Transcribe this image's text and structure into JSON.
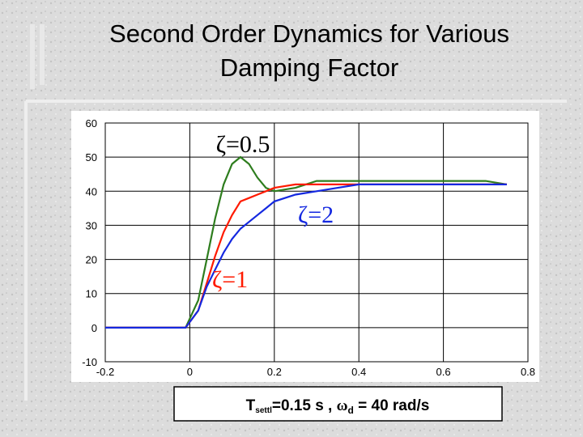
{
  "chart_data": {
    "type": "line",
    "title": [
      "Second  Order Dynamics for Various",
      "Damping Factor"
    ],
    "x": [
      -0.2,
      -0.1,
      -0.01,
      0.02,
      0.04,
      0.06,
      0.08,
      0.1,
      0.12,
      0.14,
      0.16,
      0.18,
      0.2,
      0.25,
      0.3,
      0.35,
      0.4,
      0.5,
      0.6,
      0.7,
      0.75
    ],
    "series": [
      {
        "color": "#2e7d1e",
        "values": [
          0,
          0,
          0,
          8,
          20,
          32,
          42,
          48,
          50,
          48,
          44,
          41,
          40,
          41,
          43,
          43,
          43,
          43,
          43,
          43,
          42
        ]
      },
      {
        "color": "#ff1a00",
        "values": [
          0,
          0,
          0,
          5,
          13,
          21,
          28,
          33,
          37,
          38,
          39,
          40,
          41,
          42,
          42,
          42,
          42,
          42,
          42,
          42,
          42
        ]
      },
      {
        "color": "#1428e0",
        "values": [
          0,
          0,
          0,
          5,
          12,
          17,
          22,
          26,
          29,
          31,
          33,
          35,
          37,
          39,
          40,
          41,
          42,
          42,
          42,
          42,
          42
        ]
      }
    ],
    "annotations": [
      {
        "text": "ζ=0.5",
        "color": "#000000"
      },
      {
        "text": "ζ=2",
        "color": "#1428e0"
      },
      {
        "text": "ζ=1",
        "color": "#ff1a00"
      }
    ],
    "note": {
      "parts": [
        "T",
        "settl",
        "=0.15 s , ",
        "ω",
        "d",
        " = 40 rad/s"
      ]
    },
    "xlim": [
      -0.2,
      0.8
    ],
    "xticks": [
      -0.2,
      0,
      0.2,
      0.4,
      0.6,
      0.8
    ],
    "ylim": [
      -10,
      60
    ],
    "yticks": [
      -10,
      0,
      10,
      20,
      30,
      40,
      50,
      60
    ],
    "grid": true
  }
}
